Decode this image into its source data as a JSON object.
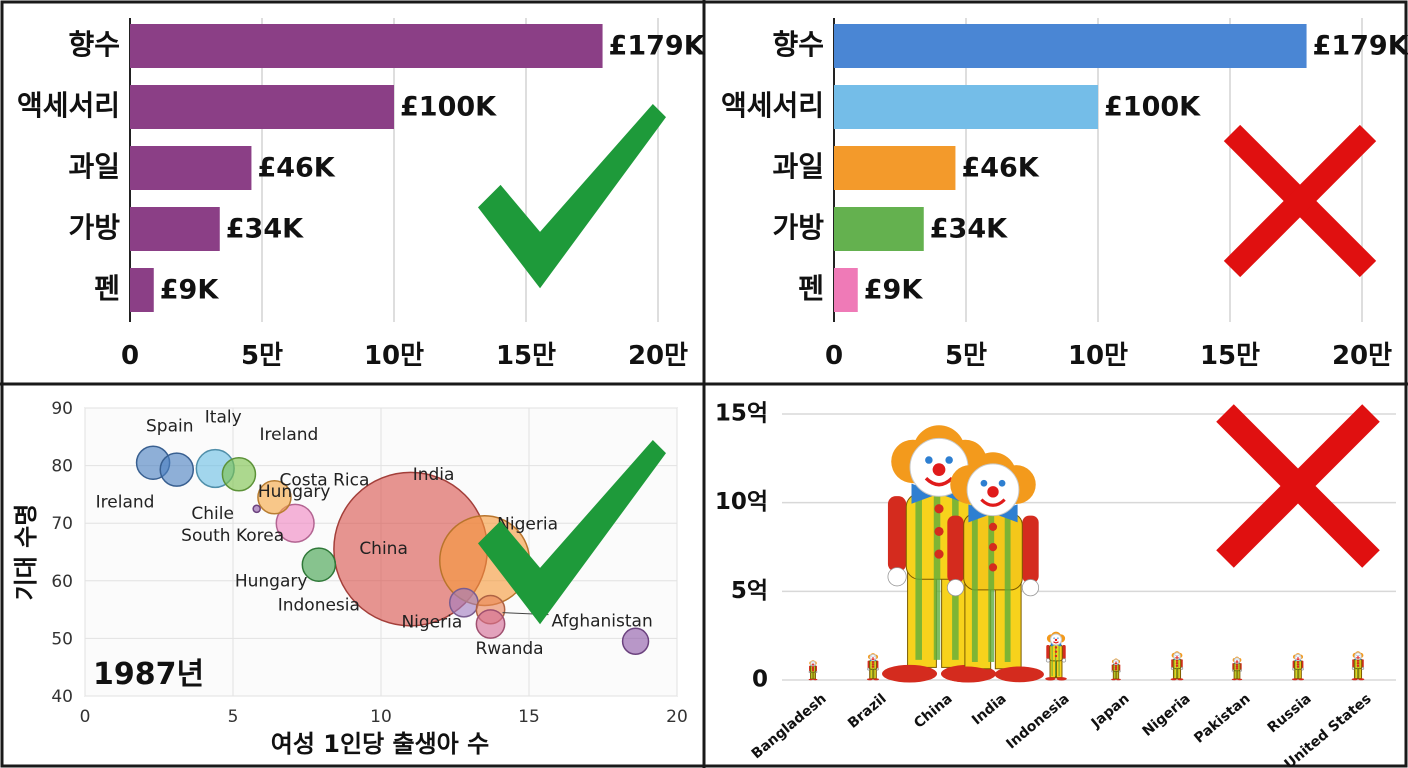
{
  "colors": {
    "check": "#1e9a3a",
    "cross": "#e01010",
    "bar_single": "#8b3f86",
    "bar_multi": [
      "#4a86d4",
      "#74bde8",
      "#f39a2b",
      "#64b14f",
      "#ef7ab7"
    ]
  },
  "chart_data": [
    {
      "type": "bar",
      "orientation": "horizontal",
      "verdict": "check",
      "categories": [
        "향수",
        "액세서리",
        "과일",
        "가방",
        "펜"
      ],
      "values": [
        179000,
        100000,
        46000,
        34000,
        9000
      ],
      "data_labels": [
        "£179K",
        "£100K",
        "£46K",
        "£34K",
        "£9K"
      ],
      "xlim": [
        0,
        200000
      ],
      "xticks": [
        0,
        50000,
        100000,
        150000,
        200000
      ],
      "xtick_labels": [
        "0",
        "5만",
        "10만",
        "15만",
        "20만"
      ],
      "grid": true,
      "color": "#8b3f86"
    },
    {
      "type": "bar",
      "orientation": "horizontal",
      "verdict": "cross",
      "categories": [
        "향수",
        "액세서리",
        "과일",
        "가방",
        "펜"
      ],
      "values": [
        179000,
        100000,
        46000,
        34000,
        9000
      ],
      "data_labels": [
        "£179K",
        "£100K",
        "£46K",
        "£34K",
        "£9K"
      ],
      "xlim": [
        0,
        200000
      ],
      "xticks": [
        0,
        50000,
        100000,
        150000,
        200000
      ],
      "xtick_labels": [
        "0",
        "5만",
        "10만",
        "15만",
        "20만"
      ],
      "grid": true,
      "colors": [
        "#4a86d4",
        "#74bde8",
        "#f39a2b",
        "#64b14f",
        "#ef7ab7"
      ]
    },
    {
      "type": "scatter",
      "subtype": "bubble",
      "verdict": "check",
      "annotation": "1987년",
      "xlabel": "여성 1인당 출생아 수",
      "ylabel": "기대 수명",
      "xlim": [
        0,
        20
      ],
      "ylim": [
        40,
        90
      ],
      "xticks": [
        0,
        5,
        10,
        15,
        20
      ],
      "yticks": [
        40,
        50,
        60,
        70,
        80,
        90
      ],
      "grid": true,
      "points": [
        {
          "x": 2.3,
          "y": 80.5,
          "size": 1.4,
          "color": "#4a7fc0",
          "label": "Ireland"
        },
        {
          "x": 3.1,
          "y": 79.3,
          "size": 1.4,
          "color": "#4a7fc0",
          "label": "Spain"
        },
        {
          "x": 4.4,
          "y": 79.5,
          "size": 1.6,
          "color": "#6bbfe3",
          "label": "Italy"
        },
        {
          "x": 5.2,
          "y": 78.5,
          "size": 1.4,
          "color": "#7bc24a",
          "label": "Ireland"
        },
        {
          "x": 6.4,
          "y": 74.5,
          "size": 1.4,
          "color": "#f5a742",
          "label": "Costa Rica"
        },
        {
          "x": 5.8,
          "y": 72.5,
          "size": 0.3,
          "color": "#8e58a8",
          "label": "Chile"
        },
        {
          "x": 5.8,
          "y": 72.5,
          "size": 0.3,
          "color": "#8e58a8",
          "label": "South Korea"
        },
        {
          "x": 7.1,
          "y": 70.0,
          "size": 1.6,
          "color": "#ef86c2",
          "label": "Hungary"
        },
        {
          "x": 7.9,
          "y": 62.8,
          "size": 1.4,
          "color": "#3fa04a",
          "label": "Hungary"
        },
        {
          "x": 7.9,
          "y": 62.8,
          "size": 1.4,
          "color": "#3fa04a",
          "label": "Indonesia"
        },
        {
          "x": 11.0,
          "y": 65.5,
          "size": 6.5,
          "color": "#d9544d",
          "label": "China"
        },
        {
          "x": 11.0,
          "y": 65.5,
          "size": 6.5,
          "color": "#d9544d",
          "label": "India"
        },
        {
          "x": 13.5,
          "y": 63.5,
          "size": 3.8,
          "color": "#f59a3a",
          "label": "Nigeria"
        },
        {
          "x": 12.8,
          "y": 56.2,
          "size": 1.2,
          "color": "#a27cc0",
          "label": "Nigeria"
        },
        {
          "x": 13.7,
          "y": 55.0,
          "size": 1.2,
          "color": "#e8845a",
          "label": "Afghanistan"
        },
        {
          "x": 13.7,
          "y": 52.5,
          "size": 1.2,
          "color": "#d46a95",
          "label": "Rwanda"
        },
        {
          "x": 18.6,
          "y": 49.5,
          "size": 1.1,
          "color": "#8e58a8",
          "label": ""
        }
      ]
    },
    {
      "type": "bar",
      "subtype": "pictograph",
      "verdict": "cross",
      "categories": [
        "Bangladesh",
        "Brazil",
        "China",
        "India",
        "Indonesia",
        "Japan",
        "Nigeria",
        "Pakistan",
        "Russia",
        "United States"
      ],
      "values": [
        1.1,
        1.5,
        14.2,
        12.7,
        2.7,
        1.2,
        1.6,
        1.3,
        1.5,
        1.6
      ],
      "unit": "억",
      "ylim": [
        0,
        15
      ],
      "yticks": [
        0,
        5,
        10,
        15
      ],
      "ytick_labels": [
        "0",
        "5억",
        "10억",
        "15억"
      ],
      "grid": true
    }
  ]
}
